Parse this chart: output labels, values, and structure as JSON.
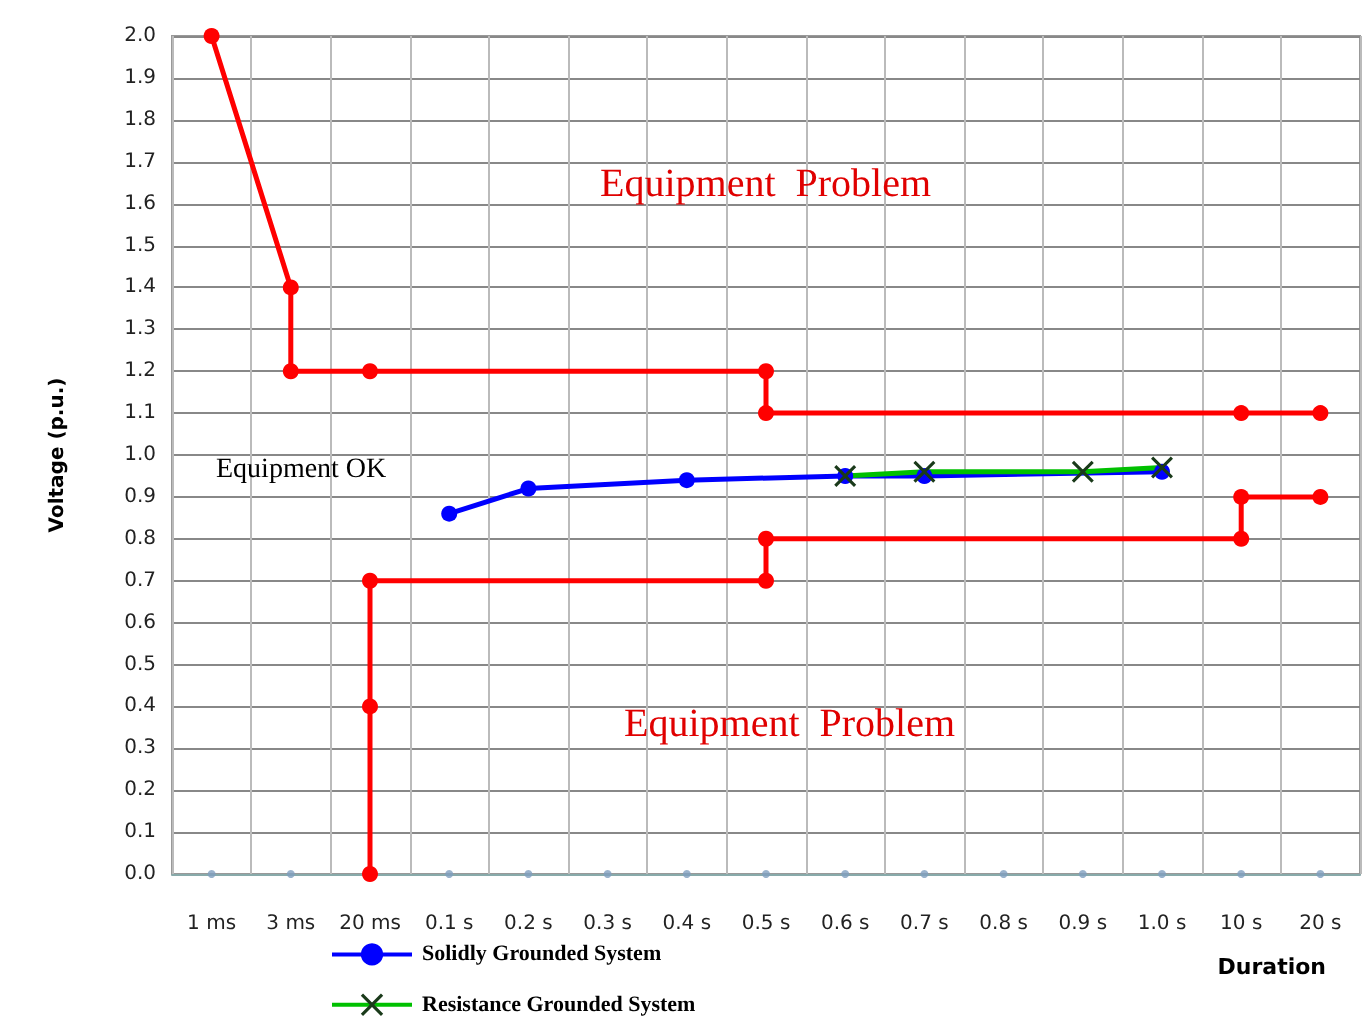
{
  "chart_data": {
    "type": "line",
    "categories": [
      "1 ms",
      "3 ms",
      "20 ms",
      "0.1 s",
      "0.2 s",
      "0.3 s",
      "0.4 s",
      "0.5 s",
      "0.6 s",
      "0.7 s",
      "0.8 s",
      "0.9 s",
      "1.0 s",
      "10 s",
      "20 s"
    ],
    "xlabel": "Duration",
    "ylabel": "Voltage (p.u.)",
    "ylim": [
      0,
      2
    ],
    "yticks": [
      {
        "value": 0,
        "label": "0.0"
      },
      0.1,
      0.2,
      0.3,
      0.4,
      0.5,
      0.6,
      0.7,
      0.8,
      0.9,
      {
        "value": 1,
        "label": "1.0"
      },
      1.1,
      1.2,
      1.3,
      1.4,
      1.5,
      1.6,
      1.7,
      1.8,
      1.9,
      {
        "value": 2,
        "label": "2.0"
      }
    ],
    "grid": true,
    "legend": "bottom",
    "annotations": [
      "Equipment  Problem",
      "Equipment OK",
      "Equipment  Problem"
    ],
    "series": [
      {
        "color": "#ff0000",
        "marker": "circle",
        "x": [
          "1 ms",
          "3 ms",
          "3 ms",
          "20 ms",
          "0.5 s",
          "0.5 s",
          "10 s",
          "20 s"
        ],
        "values": [
          2.0,
          1.4,
          1.2,
          1.2,
          1.2,
          1.1,
          1.1,
          1.1
        ]
      },
      {
        "color": "#ff0000",
        "marker": "circle",
        "x": [
          "20 ms",
          "20 ms",
          "20 ms",
          "0.5 s",
          "0.5 s",
          "10 s",
          "10 s",
          "20 s"
        ],
        "values": [
          0.0,
          0.4,
          0.7,
          0.7,
          0.8,
          0.8,
          0.9,
          0.9
        ]
      },
      {
        "name": "Solidly Grounded System",
        "color": "#0000ff",
        "marker": "circle",
        "x": [
          "0.1 s",
          "0.2 s",
          "0.4 s",
          "0.6 s",
          "0.7 s",
          "1.0 s"
        ],
        "values": [
          0.86,
          0.92,
          0.94,
          0.95,
          0.95,
          0.96
        ]
      },
      {
        "name": "Resistance Grounded System",
        "color": "#00c000",
        "marker": "cross",
        "x": [
          "0.6 s",
          "0.7 s",
          "0.9 s",
          "1.0 s"
        ],
        "values": [
          0.95,
          0.96,
          0.96,
          0.97
        ]
      },
      {
        "type": "scatter",
        "color": "#7f9fbf",
        "marker": "circle",
        "values": [
          0,
          0,
          null,
          0,
          0,
          0,
          0,
          0,
          0,
          0,
          0,
          0,
          0,
          0,
          0
        ]
      }
    ]
  }
}
